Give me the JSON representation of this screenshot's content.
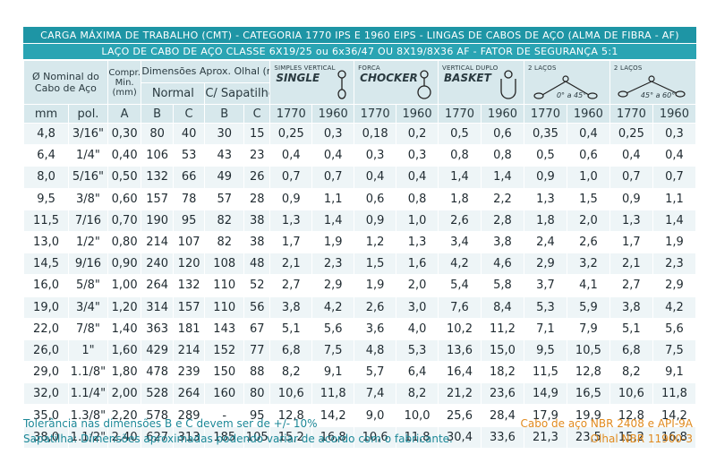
{
  "title_main": "CARGA MÁXIMA DE TRABALHO (CMT) - CATEGORIA 1770 IPS E 1960 EIPS - LINGAS DE CABOS DE AÇO (ALMA DE FIBRA - AF)",
  "title_sub": "LAÇO DE CABO DE AÇO CLASSE 6X19/25 ou 6x36/47 OU 8X19/8X36 AF - FATOR DE SEGURANÇA 5:1",
  "headers": {
    "nominal": "Ø Nominal do Cabo de Aço",
    "nominal_l1": "Ø Nominal do",
    "nominal_l2": "Cabo de Aço",
    "compr_l1": "Compr.",
    "compr_l2": "Min.",
    "compr_l3": "(mm)",
    "dims": "Dimensões Aprox. Olhal (mm)",
    "normal": "Normal",
    "sapatilho": "C/ Sapatilho",
    "simples_small": "SIMPLES VERTICAL",
    "simples_big": "SINGLE",
    "forca_small": "FORCA",
    "forca_big": "CHOCKER",
    "vertical_small": "VERTICAL DUPLO",
    "vertical_big": "BASKET",
    "lacos2a_small": "2 LAÇOS",
    "lacos2a_angle": "0° a 45°",
    "lacos2b_small": "2 LAÇOS",
    "lacos2b_angle": "45° a 60°",
    "sub": [
      "mm",
      "pol.",
      "A",
      "B",
      "C",
      "B",
      "C",
      "1770",
      "1960",
      "1770",
      "1960",
      "1770",
      "1960",
      "1770",
      "1960",
      "1770",
      "1960"
    ]
  },
  "rows": [
    [
      "4,8",
      "3/16\"",
      "0,30",
      "80",
      "40",
      "30",
      "15",
      "0,25",
      "0,3",
      "0,18",
      "0,2",
      "0,5",
      "0,6",
      "0,35",
      "0,4",
      "0,25",
      "0,3"
    ],
    [
      "6,4",
      "1/4\"",
      "0,40",
      "106",
      "53",
      "43",
      "23",
      "0,4",
      "0,4",
      "0,3",
      "0,3",
      "0,8",
      "0,8",
      "0,5",
      "0,6",
      "0,4",
      "0,4"
    ],
    [
      "8,0",
      "5/16\"",
      "0,50",
      "132",
      "66",
      "49",
      "26",
      "0,7",
      "0,7",
      "0,4",
      "0,4",
      "1,4",
      "1,4",
      "0,9",
      "1,0",
      "0,7",
      "0,7"
    ],
    [
      "9,5",
      "3/8\"",
      "0,60",
      "157",
      "78",
      "57",
      "28",
      "0,9",
      "1,1",
      "0,6",
      "0,8",
      "1,8",
      "2,2",
      "1,3",
      "1,5",
      "0,9",
      "1,1"
    ],
    [
      "11,5",
      "7/16",
      "0,70",
      "190",
      "95",
      "82",
      "38",
      "1,3",
      "1,4",
      "0,9",
      "1,0",
      "2,6",
      "2,8",
      "1,8",
      "2,0",
      "1,3",
      "1,4"
    ],
    [
      "13,0",
      "1/2\"",
      "0,80",
      "214",
      "107",
      "82",
      "38",
      "1,7",
      "1,9",
      "1,2",
      "1,3",
      "3,4",
      "3,8",
      "2,4",
      "2,6",
      "1,7",
      "1,9"
    ],
    [
      "14,5",
      "9/16",
      "0,90",
      "240",
      "120",
      "108",
      "48",
      "2,1",
      "2,3",
      "1,5",
      "1,6",
      "4,2",
      "4,6",
      "2,9",
      "3,2",
      "2,1",
      "2,3"
    ],
    [
      "16,0",
      "5/8\"",
      "1,00",
      "264",
      "132",
      "110",
      "52",
      "2,7",
      "2,9",
      "1,9",
      "2,0",
      "5,4",
      "5,8",
      "3,7",
      "4,1",
      "2,7",
      "2,9"
    ],
    [
      "19,0",
      "3/4\"",
      "1,20",
      "314",
      "157",
      "110",
      "56",
      "3,8",
      "4,2",
      "2,6",
      "3,0",
      "7,6",
      "8,4",
      "5,3",
      "5,9",
      "3,8",
      "4,2"
    ],
    [
      "22,0",
      "7/8\"",
      "1,40",
      "363",
      "181",
      "143",
      "67",
      "5,1",
      "5,6",
      "3,6",
      "4,0",
      "10,2",
      "11,2",
      "7,1",
      "7,9",
      "5,1",
      "5,6"
    ],
    [
      "26,0",
      "1\"",
      "1,60",
      "429",
      "214",
      "152",
      "77",
      "6,8",
      "7,5",
      "4,8",
      "5,3",
      "13,6",
      "15,0",
      "9,5",
      "10,5",
      "6,8",
      "7,5"
    ],
    [
      "29,0",
      "1.1/8\"",
      "1,80",
      "478",
      "239",
      "150",
      "88",
      "8,2",
      "9,1",
      "5,7",
      "6,4",
      "16,4",
      "18,2",
      "11,5",
      "12,8",
      "8,2",
      "9,1"
    ],
    [
      "32,0",
      "1.1/4\"",
      "2,00",
      "528",
      "264",
      "160",
      "80",
      "10,6",
      "11,8",
      "7,4",
      "8,2",
      "21,2",
      "23,6",
      "14,9",
      "16,5",
      "10,6",
      "11,8"
    ],
    [
      "35,0",
      "1.3/8\"",
      "2,20",
      "578",
      "289",
      "-",
      "95",
      "12,8",
      "14,2",
      "9,0",
      "10,0",
      "25,6",
      "28,4",
      "17,9",
      "19,9",
      "12,8",
      "14,2"
    ],
    [
      "38,0",
      "1.1/2\"",
      "2,40",
      "627",
      "313",
      "185",
      "105",
      "15,2",
      "16,8",
      "10,6",
      "11,8",
      "30,4",
      "33,6",
      "21,3",
      "23,5",
      "15,2",
      "16,8"
    ]
  ],
  "footer_left_1": "Tolerância nas dimensões B e C devem ser de +/- 10%",
  "footer_left_2": "Sapatilha: Dimensões aproximadas podendo variar de acordo com o fabricante.",
  "footer_right_1": "Cabo de aço NBR 2408 e API-9A",
  "footer_right_2": "Olhal NBR 11900-3",
  "colors": {
    "header_bar": "#1e95a5",
    "header_bar2": "#2aa4b3",
    "header_cell": "#d7e8ec",
    "stripe": "#eef5f7",
    "footer_left": "#1b8797",
    "footer_right": "#e08a1e"
  }
}
